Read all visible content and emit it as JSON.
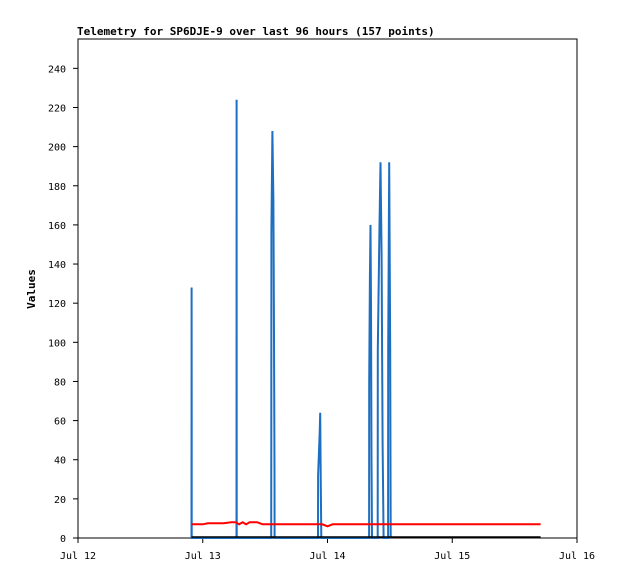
{
  "chart_data": {
    "type": "line",
    "title": "Telemetry for SP6DJE-9 over last 96 hours (157 points)",
    "xlabel": "",
    "ylabel": "Values",
    "x_tick_labels": [
      "Jul 12",
      "Jul 13",
      "Jul 14",
      "Jul 15",
      "Jul 16"
    ],
    "xlim": [
      "2024-07-12T00:00",
      "2024-07-16T00:00"
    ],
    "y_tick_values": [
      0,
      20,
      40,
      60,
      80,
      100,
      120,
      140,
      160,
      180,
      200,
      220,
      240
    ],
    "ylim": [
      0,
      255
    ],
    "grid": false,
    "legend": "none",
    "series": [
      {
        "color": "#1f6fc0",
        "style": "spikes",
        "points": [
          [
            "2024-07-12T21:50",
            0
          ],
          [
            "2024-07-12T21:51",
            128
          ],
          [
            "2024-07-12T21:52",
            64
          ],
          [
            "2024-07-12T21:53",
            0
          ],
          [
            "2024-07-13T06:30",
            0
          ],
          [
            "2024-07-13T06:31",
            224
          ],
          [
            "2024-07-13T06:32",
            0
          ],
          [
            "2024-07-13T13:10",
            0
          ],
          [
            "2024-07-13T13:11",
            52
          ],
          [
            "2024-07-13T13:12",
            156
          ],
          [
            "2024-07-13T13:24",
            208
          ],
          [
            "2024-07-13T13:36",
            172
          ],
          [
            "2024-07-13T13:42",
            104
          ],
          [
            "2024-07-13T13:48",
            34
          ],
          [
            "2024-07-13T13:49",
            0
          ],
          [
            "2024-07-13T22:10",
            0
          ],
          [
            "2024-07-13T22:11",
            32
          ],
          [
            "2024-07-13T22:30",
            54
          ],
          [
            "2024-07-13T22:36",
            64
          ],
          [
            "2024-07-13T22:42",
            32
          ],
          [
            "2024-07-13T22:48",
            0
          ],
          [
            "2024-07-14T08:00",
            0
          ],
          [
            "2024-07-14T08:01",
            80
          ],
          [
            "2024-07-14T08:10",
            133
          ],
          [
            "2024-07-14T08:16",
            160
          ],
          [
            "2024-07-14T08:22",
            120
          ],
          [
            "2024-07-14T08:28",
            40
          ],
          [
            "2024-07-14T08:34",
            0
          ],
          [
            "2024-07-14T09:40",
            0
          ],
          [
            "2024-07-14T09:41",
            96
          ],
          [
            "2024-07-14T10:00",
            160
          ],
          [
            "2024-07-14T10:12",
            192
          ],
          [
            "2024-07-14T10:24",
            144
          ],
          [
            "2024-07-14T10:36",
            48
          ],
          [
            "2024-07-14T10:48",
            0
          ],
          [
            "2024-07-14T11:40",
            0
          ],
          [
            "2024-07-14T11:41",
            96
          ],
          [
            "2024-07-14T11:52",
            192
          ],
          [
            "2024-07-14T12:04",
            96
          ],
          [
            "2024-07-14T12:10",
            0
          ]
        ]
      },
      {
        "color": "#ff0000",
        "style": "line",
        "points": [
          [
            "2024-07-12T21:50",
            7.0
          ],
          [
            "2024-07-13T00:00",
            7.0
          ],
          [
            "2024-07-13T01:00",
            7.5
          ],
          [
            "2024-07-13T04:00",
            7.5
          ],
          [
            "2024-07-13T05:30",
            8.0
          ],
          [
            "2024-07-13T06:20",
            8.0
          ],
          [
            "2024-07-13T07:00",
            7.0
          ],
          [
            "2024-07-13T07:40",
            8.0
          ],
          [
            "2024-07-13T08:20",
            7.0
          ],
          [
            "2024-07-13T09:00",
            8.0
          ],
          [
            "2024-07-13T10:30",
            8.0
          ],
          [
            "2024-07-13T11:30",
            7.0
          ],
          [
            "2024-07-13T23:00",
            7.0
          ],
          [
            "2024-07-14T00:00",
            6.0
          ],
          [
            "2024-07-14T01:00",
            7.0
          ],
          [
            "2024-07-15T17:00",
            7.0
          ]
        ]
      },
      {
        "color": "#000000",
        "style": "line",
        "points": [
          [
            "2024-07-12T21:50",
            0.5
          ],
          [
            "2024-07-15T17:00",
            0.5
          ]
        ]
      }
    ]
  }
}
